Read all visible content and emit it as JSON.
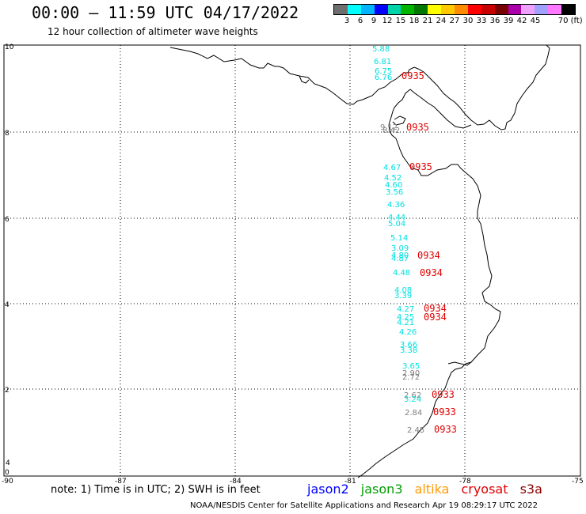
{
  "header": {
    "title": "00:00 – 11:59 UTC 04/17/2022",
    "subtitle": "12 hour collection of altimeter wave heights"
  },
  "colorbar": {
    "colors": [
      "#6e6e6e",
      "#00ffff",
      "#00b4ff",
      "#0000ff",
      "#00d2aa",
      "#00b400",
      "#007800",
      "#ffff00",
      "#ffc800",
      "#ff8c00",
      "#ff0000",
      "#c80000",
      "#780000",
      "#aa00aa",
      "#f0a0ff",
      "#a0a0ff",
      "#ff78ff",
      "#000000"
    ],
    "labels": [
      "3",
      "6",
      "9",
      "12",
      "15",
      "18",
      "21",
      "24",
      "27",
      "30",
      "33",
      "36",
      "39",
      "42",
      "45",
      "70 (ft)"
    ]
  },
  "map": {
    "y_ticks": [
      "10",
      "8",
      "6",
      "4",
      "2",
      "0"
    ],
    "x_ticks": [
      "-90",
      "-87",
      "-84",
      "-81",
      "-78",
      "-75"
    ],
    "small_tick": "4"
  },
  "swh_labels": [
    {
      "text": "5.88",
      "color": "#00e0e0"
    },
    {
      "text": "6.81",
      "color": "#00e0e0"
    },
    {
      "text": "6.75",
      "color": "#00e0e0"
    },
    {
      "text": "6.76",
      "color": "#00e0e0"
    },
    {
      "text": "9.12",
      "color": "#808080"
    },
    {
      "text": "8.42",
      "color": "#808080"
    },
    {
      "text": "4.67",
      "color": "#00e0e0"
    },
    {
      "text": "4.52",
      "color": "#00e0e0"
    },
    {
      "text": "4.60",
      "color": "#00e0e0"
    },
    {
      "text": "3.56",
      "color": "#00e0e0"
    },
    {
      "text": "4.36",
      "color": "#00e0e0"
    },
    {
      "text": "4.44",
      "color": "#00e0e0"
    },
    {
      "text": "5.04",
      "color": "#00e0e0"
    },
    {
      "text": "5.14",
      "color": "#00e0e0"
    },
    {
      "text": "3.09",
      "color": "#00e0e0"
    },
    {
      "text": "4.80",
      "color": "#00e0e0"
    },
    {
      "text": "4.87",
      "color": "#00e0e0"
    },
    {
      "text": "4.48",
      "color": "#00e0e0"
    },
    {
      "text": "4.08",
      "color": "#00e0e0"
    },
    {
      "text": "3.39",
      "color": "#00e0e0"
    },
    {
      "text": "4.27",
      "color": "#00e0e0"
    },
    {
      "text": "4.25",
      "color": "#00e0e0"
    },
    {
      "text": "4.21",
      "color": "#00e0e0"
    },
    {
      "text": "4.26",
      "color": "#00e0e0"
    },
    {
      "text": "3.66",
      "color": "#00e0e0"
    },
    {
      "text": "3.38",
      "color": "#00e0e0"
    },
    {
      "text": "3.65",
      "color": "#00e0e0"
    },
    {
      "text": "2.90",
      "color": "#808080"
    },
    {
      "text": "2.72",
      "color": "#808080"
    },
    {
      "text": "2.62",
      "color": "#808080"
    },
    {
      "text": "3.24",
      "color": "#00e0e0"
    },
    {
      "text": "2.84",
      "color": "#808080"
    },
    {
      "text": "2.45",
      "color": "#808080"
    }
  ],
  "pass_times": [
    "0935",
    "0935",
    "0935",
    "0934",
    "0934",
    "0934",
    "0934",
    "0933",
    "0933",
    "0933"
  ],
  "footer": {
    "note": "note: 1) Time is in UTC; 2) SWH is in feet",
    "legend": [
      {
        "label": "jason2",
        "color": "#0000ff"
      },
      {
        "label": "jason3",
        "color": "#00a000"
      },
      {
        "label": "altika",
        "color": "#ff9900"
      },
      {
        "label": "cryosat",
        "color": "#e00000"
      },
      {
        "label": "s3a",
        "color": "#8b0000"
      }
    ],
    "credit": "NOAA/NESDIS Center for Satellite Applications and Research    Apr 19 08:29:17 UTC 2022"
  }
}
